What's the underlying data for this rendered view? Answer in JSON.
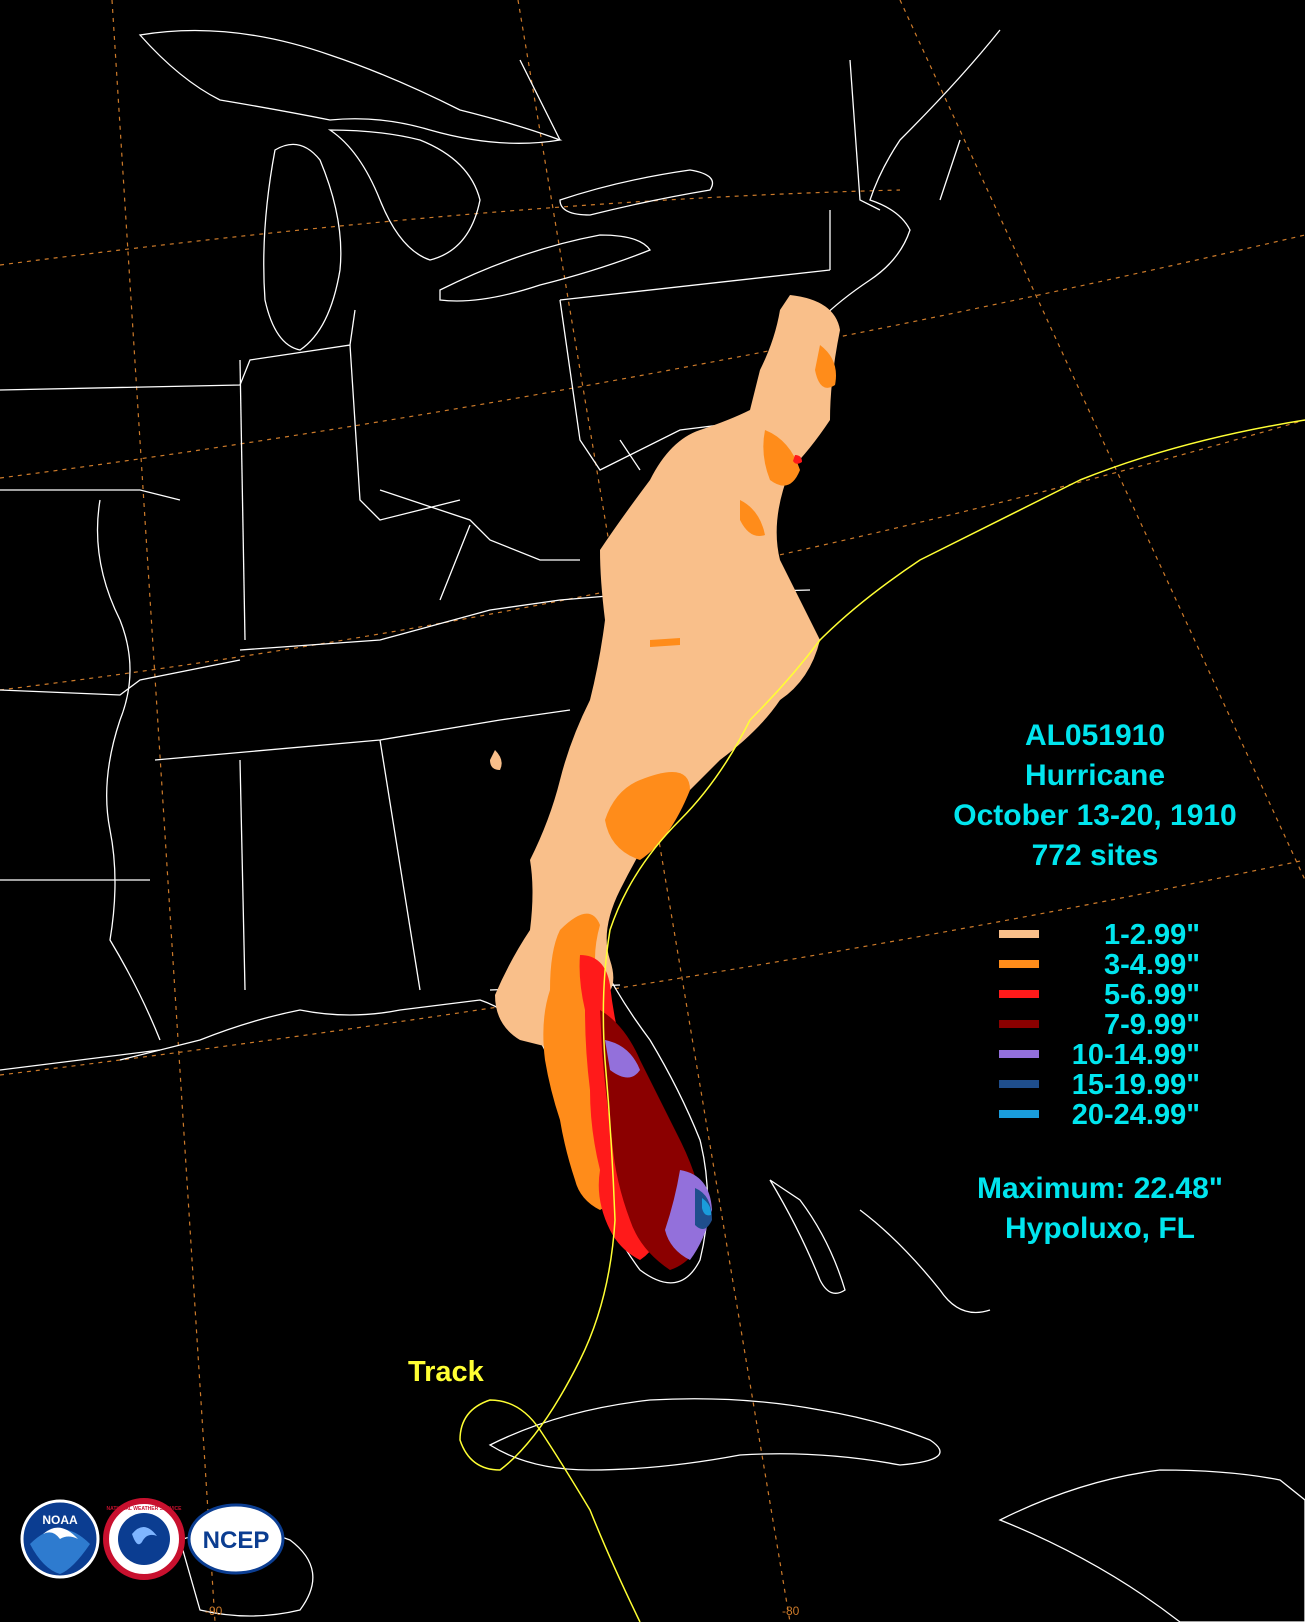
{
  "storm": {
    "id": "AL051910",
    "type": "Hurricane",
    "dates": "October 13-20, 1910",
    "sites": "772 sites"
  },
  "legend": [
    {
      "label": "1-2.99\"",
      "color": "#f9bf8a"
    },
    {
      "label": "3-4.99\"",
      "color": "#ff8c1a"
    },
    {
      "label": "5-6.99\"",
      "color": "#ff1a1a"
    },
    {
      "label": "7-9.99\"",
      "color": "#8b0000"
    },
    {
      "label": "10-14.99\"",
      "color": "#9370db"
    },
    {
      "label": "15-19.99\"",
      "color": "#1f4e8c"
    },
    {
      "label": "20-24.99\"",
      "color": "#1a9cdb"
    }
  ],
  "maximum": {
    "label": "Maximum: 22.48\"",
    "location": "Hypoluxo, FL"
  },
  "track_label": "Track",
  "longitude_labels": [
    "-90",
    "-80"
  ],
  "logos": [
    {
      "icon": "noaa-logo",
      "text": "NOAA"
    },
    {
      "icon": "nws-logo",
      "text": "NATIONAL WEATHER SERVICE"
    },
    {
      "icon": "ncep-logo",
      "text": "NCEP"
    }
  ],
  "colors": {
    "background": "#000000",
    "boundaries": "#ffffff",
    "graticule": "#cc7a2a",
    "track": "#ffff33",
    "text": "#00e5ee"
  }
}
